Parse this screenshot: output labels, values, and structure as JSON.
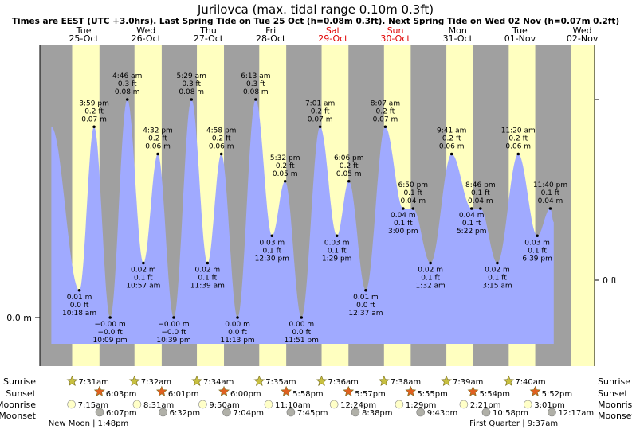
{
  "chart_data": {
    "type": "area",
    "title": "Jurilovca (max. tidal range 0.10m 0.3ft)",
    "subtitle": "Times are EEST (UTC +3.0hrs). Last Spring Tide on Tue 25 Oct (h=0.08m 0.3ft). Next Spring Tide on Wed 02 Nov (h=0.07m 0.2ft)",
    "x_unit": "hours since Tue 25-Oct 00:00",
    "y_unit": "m",
    "ylim": [
      -0.014,
      0.104
    ],
    "days": [
      {
        "dow": "Tue",
        "date": "25-Oct"
      },
      {
        "dow": "Wed",
        "date": "26-Oct"
      },
      {
        "dow": "Thu",
        "date": "27-Oct"
      },
      {
        "dow": "Fri",
        "date": "28-Oct"
      },
      {
        "dow": "Sat",
        "date": "29-Oct"
      },
      {
        "dow": "Sun",
        "date": "30-Oct"
      },
      {
        "dow": "Mon",
        "date": "31-Oct"
      },
      {
        "dow": "Tue",
        "date": "01-Nov"
      },
      {
        "dow": "Wed",
        "date": "02-Nov"
      }
    ],
    "y_axis_left": {
      "label": "0.0 m",
      "value": 0.0
    },
    "y_axis_right": {
      "label": "0 ft",
      "value": 0.0
    },
    "tides": [
      {
        "x": -0.5,
        "h": 0.07,
        "type": "high"
      },
      {
        "x": 10.3,
        "h": 0.01,
        "type": "low",
        "time": "10:18 am",
        "m": "0.01 m",
        "ft": "0.0 ft"
      },
      {
        "x": 15.98,
        "h": 0.07,
        "type": "high",
        "time": "3:59 pm",
        "m": "0.07 m",
        "ft": "0.2 ft"
      },
      {
        "x": 22.15,
        "h": 0.0,
        "type": "low",
        "time": "10:09 pm",
        "m": "−0.00 m",
        "ft": "−0.0 ft"
      },
      {
        "x": 28.77,
        "h": 0.08,
        "type": "high",
        "time": "4:46 am",
        "m": "0.08 m",
        "ft": "0.3 ft"
      },
      {
        "x": 34.95,
        "h": 0.02,
        "type": "low",
        "time": "10:57 am",
        "m": "0.02 m",
        "ft": "0.1 ft"
      },
      {
        "x": 40.53,
        "h": 0.06,
        "type": "high",
        "time": "4:32 pm",
        "m": "0.06 m",
        "ft": "0.2 ft"
      },
      {
        "x": 46.65,
        "h": 0.0,
        "type": "low",
        "time": "10:39 pm",
        "m": "−0.00 m",
        "ft": "−0.0 ft"
      },
      {
        "x": 53.48,
        "h": 0.08,
        "type": "high",
        "time": "5:29 am",
        "m": "0.08 m",
        "ft": "0.3 ft"
      },
      {
        "x": 59.65,
        "h": 0.02,
        "type": "low",
        "time": "11:39 am",
        "m": "0.02 m",
        "ft": "0.1 ft"
      },
      {
        "x": 64.97,
        "h": 0.06,
        "type": "high",
        "time": "4:58 pm",
        "m": "0.06 m",
        "ft": "0.2 ft"
      },
      {
        "x": 71.22,
        "h": 0.0,
        "type": "low",
        "time": "11:13 pm",
        "m": "0.00 m",
        "ft": "0.0 ft"
      },
      {
        "x": 78.22,
        "h": 0.08,
        "type": "high",
        "time": "6:13 am",
        "m": "0.08 m",
        "ft": "0.3 ft"
      },
      {
        "x": 84.5,
        "h": 0.03,
        "type": "low",
        "time": "12:30 pm",
        "m": "0.03 m",
        "ft": "0.1 ft"
      },
      {
        "x": 89.53,
        "h": 0.05,
        "type": "high",
        "time": "5:32 pm",
        "m": "0.05 m",
        "ft": "0.2 ft"
      },
      {
        "x": 95.85,
        "h": 0.0,
        "type": "low",
        "time": "11:51 pm",
        "m": "0.00 m",
        "ft": "0.0 ft"
      },
      {
        "x": 103.02,
        "h": 0.07,
        "type": "high",
        "time": "7:01 am",
        "m": "0.07 m",
        "ft": "0.2 ft"
      },
      {
        "x": 109.48,
        "h": 0.03,
        "type": "low",
        "time": "1:29 pm",
        "m": "0.03 m",
        "ft": "0.1 ft"
      },
      {
        "x": 114.1,
        "h": 0.05,
        "type": "high",
        "time": "6:06 pm",
        "m": "0.05 m",
        "ft": "0.2 ft"
      },
      {
        "x": 120.62,
        "h": 0.01,
        "type": "low",
        "time": "12:37 am",
        "m": "0.01 m",
        "ft": "0.0 ft"
      },
      {
        "x": 128.12,
        "h": 0.07,
        "type": "high",
        "time": "8:07 am",
        "m": "0.07 m",
        "ft": "0.2 ft"
      },
      {
        "x": 135.0,
        "h": 0.04,
        "type": "low",
        "time": "3:00 pm",
        "m": "0.04 m",
        "ft": "0.1 ft"
      },
      {
        "x": 138.83,
        "h": 0.04,
        "type": "high",
        "time": "6:50 pm",
        "m": "0.04 m",
        "ft": "0.1 ft"
      },
      {
        "x": 145.53,
        "h": 0.02,
        "type": "low",
        "time": "1:32 am",
        "m": "0.02 m",
        "ft": "0.1 ft"
      },
      {
        "x": 153.68,
        "h": 0.06,
        "type": "high",
        "time": "9:41 am",
        "m": "0.06 m",
        "ft": "0.2 ft"
      },
      {
        "x": 161.37,
        "h": 0.04,
        "type": "low",
        "time": "5:22 pm",
        "m": "0.04 m",
        "ft": "0.1 ft"
      },
      {
        "x": 164.77,
        "h": 0.04,
        "type": "high",
        "time": "8:46 pm",
        "m": "0.04 m",
        "ft": "0.1 ft"
      },
      {
        "x": 171.25,
        "h": 0.02,
        "type": "low",
        "time": "3:15 am",
        "m": "0.02 m",
        "ft": "0.1 ft"
      },
      {
        "x": 179.33,
        "h": 0.06,
        "type": "high",
        "time": "11:20 am",
        "m": "0.06 m",
        "ft": "0.2 ft"
      },
      {
        "x": 186.65,
        "h": 0.03,
        "type": "low",
        "time": "6:39 pm",
        "m": "0.03 m",
        "ft": "0.1 ft"
      },
      {
        "x": 191.67,
        "h": 0.04,
        "type": "high",
        "time": "11:40 pm",
        "m": "0.04 m",
        "ft": "0.1 ft"
      },
      {
        "x": 193.0,
        "h": 0.035,
        "type": "end"
      }
    ],
    "day_periods": [
      {
        "rise": 7.52,
        "set": 18.05
      },
      {
        "rise": 31.53,
        "set": 42.02
      },
      {
        "rise": 55.57,
        "set": 66.0
      },
      {
        "rise": 79.58,
        "set": 89.97
      },
      {
        "rise": 103.6,
        "set": 113.95
      },
      {
        "rise": 127.63,
        "set": 137.92
      },
      {
        "rise": 151.65,
        "set": 161.9
      },
      {
        "rise": 175.67,
        "set": 185.87
      },
      {
        "rise": 199.68,
        "set": 210.0
      }
    ],
    "sun_moon": {
      "row_labels": [
        "Sunrise",
        "Sunset",
        "Moonrise",
        "Moonset"
      ],
      "sunrise": [
        {
          "x": 7.52,
          "label": "7:31am"
        },
        {
          "x": 31.53,
          "label": "7:32am"
        },
        {
          "x": 55.57,
          "label": "7:34am"
        },
        {
          "x": 79.58,
          "label": "7:35am"
        },
        {
          "x": 103.6,
          "label": "7:36am"
        },
        {
          "x": 127.63,
          "label": "7:38am"
        },
        {
          "x": 151.65,
          "label": "7:39am"
        },
        {
          "x": 175.67,
          "label": "7:40am"
        }
      ],
      "sunset": [
        {
          "x": 18.05,
          "label": "6:03pm"
        },
        {
          "x": 42.02,
          "label": "6:01pm"
        },
        {
          "x": 66.0,
          "label": "6:00pm"
        },
        {
          "x": 89.97,
          "label": "5:58pm"
        },
        {
          "x": 113.95,
          "label": "5:57pm"
        },
        {
          "x": 137.92,
          "label": "5:55pm"
        },
        {
          "x": 161.9,
          "label": "5:54pm"
        },
        {
          "x": 185.87,
          "label": "5:52pm"
        }
      ],
      "moonrise": [
        {
          "x": 7.25,
          "label": "7:15am"
        },
        {
          "x": 32.52,
          "label": "8:31am"
        },
        {
          "x": 57.83,
          "label": "9:50am"
        },
        {
          "x": 83.17,
          "label": "11:10am"
        },
        {
          "x": 108.4,
          "label": "12:24pm"
        },
        {
          "x": 133.48,
          "label": "1:29pm"
        },
        {
          "x": 158.35,
          "label": "2:21pm"
        },
        {
          "x": 183.02,
          "label": "3:01pm"
        }
      ],
      "moonset": [
        {
          "x": 18.12,
          "label": "6:07pm"
        },
        {
          "x": 42.53,
          "label": "6:32pm"
        },
        {
          "x": 67.07,
          "label": "7:04pm"
        },
        {
          "x": 91.75,
          "label": "7:45pm"
        },
        {
          "x": 116.63,
          "label": "8:38pm"
        },
        {
          "x": 141.72,
          "label": "9:43pm"
        },
        {
          "x": 166.97,
          "label": "10:58pm"
        },
        {
          "x": 192.28,
          "label": "12:17am"
        }
      ],
      "phases": [
        {
          "x": 13.8,
          "label": "New Moon | 1:48pm"
        },
        {
          "x": 177.6,
          "label": "First Quarter | 9:37am"
        }
      ]
    }
  },
  "colors": {
    "water": "#a0aaff",
    "day": "#ffffc0",
    "night": "#a0a0a0",
    "weekday": "#000000",
    "weekend": "#e00000",
    "sunrise_star": "#c8c040",
    "sunset_star": "#e06020",
    "moonrise": "#ffffc8",
    "moonset": "#b0b0a8"
  }
}
